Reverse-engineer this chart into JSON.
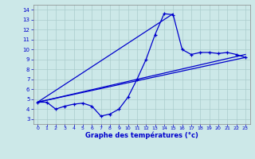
{
  "xlabel": "Graphe des températures (°c)",
  "bg_color": "#cce8e8",
  "line_color": "#0000cc",
  "grid_color": "#aacccc",
  "xlim": [
    -0.5,
    23.5
  ],
  "ylim": [
    2.5,
    14.5
  ],
  "xticks": [
    0,
    1,
    2,
    3,
    4,
    5,
    6,
    7,
    8,
    9,
    10,
    11,
    12,
    13,
    14,
    15,
    16,
    17,
    18,
    19,
    20,
    21,
    22,
    23
  ],
  "yticks": [
    3,
    4,
    5,
    6,
    7,
    8,
    9,
    10,
    11,
    12,
    13,
    14
  ],
  "main_x": [
    0,
    1,
    2,
    3,
    4,
    5,
    6,
    7,
    8,
    9,
    10,
    11,
    12,
    13,
    14,
    15,
    16,
    17,
    18,
    19,
    20,
    21,
    22,
    23
  ],
  "main_y": [
    4.7,
    4.7,
    4.0,
    4.3,
    4.5,
    4.6,
    4.3,
    3.3,
    3.5,
    4.0,
    5.2,
    7.0,
    9.0,
    11.5,
    13.6,
    13.5,
    10.0,
    9.5,
    9.7,
    9.7,
    9.6,
    9.7,
    9.5,
    9.2
  ],
  "line1_x": [
    0,
    23
  ],
  "line1_y": [
    4.7,
    9.2
  ],
  "line2_x": [
    0,
    15
  ],
  "line2_y": [
    4.7,
    13.6
  ],
  "line3_x": [
    0,
    23
  ],
  "line3_y": [
    4.7,
    9.5
  ]
}
